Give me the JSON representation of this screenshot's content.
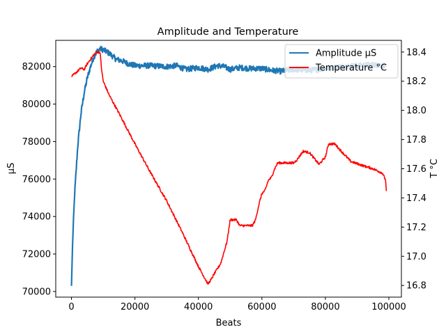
{
  "chart_data": {
    "type": "line",
    "title": "Amplitude and Temperature",
    "xlabel": "Beats",
    "ylabel_left": "µS",
    "ylabel_right": "T °C",
    "xlim": [
      -4950,
      103950
    ],
    "ylim_left": [
      69700,
      83400
    ],
    "ylim_right": [
      16.72,
      18.48
    ],
    "x_ticks": [
      0,
      20000,
      40000,
      60000,
      80000,
      100000
    ],
    "y_ticks_left": [
      70000,
      72000,
      74000,
      76000,
      78000,
      80000,
      82000
    ],
    "y_ticks_right": [
      16.8,
      17.0,
      17.2,
      17.4,
      17.6,
      17.8,
      18.0,
      18.2,
      18.4
    ],
    "grid": false,
    "legend_position": "upper right",
    "series": [
      {
        "name": "Amplitude µS",
        "axis": "left",
        "color": "#1f77b4",
        "noise": 150,
        "points": [
          [
            0,
            70300
          ],
          [
            400,
            72800
          ],
          [
            1000,
            75200
          ],
          [
            2000,
            77800
          ],
          [
            3000,
            79500
          ],
          [
            4000,
            80600
          ],
          [
            5000,
            81400
          ],
          [
            6000,
            82000
          ],
          [
            7000,
            82500
          ],
          [
            8000,
            82800
          ],
          [
            9000,
            82950
          ],
          [
            10000,
            82900
          ],
          [
            12000,
            82700
          ],
          [
            14000,
            82400
          ],
          [
            16000,
            82300
          ],
          [
            18000,
            82150
          ],
          [
            20000,
            82050
          ],
          [
            25000,
            82050
          ],
          [
            30000,
            82000
          ],
          [
            33000,
            82050
          ],
          [
            36000,
            81850
          ],
          [
            40000,
            81950
          ],
          [
            43000,
            81850
          ],
          [
            46000,
            82050
          ],
          [
            48000,
            82000
          ],
          [
            50000,
            81850
          ],
          [
            53000,
            81950
          ],
          [
            56000,
            81900
          ],
          [
            60000,
            81900
          ],
          [
            63000,
            81800
          ],
          [
            66000,
            81750
          ],
          [
            70000,
            81850
          ],
          [
            75000,
            81800
          ],
          [
            80000,
            81900
          ],
          [
            85000,
            82000
          ],
          [
            90000,
            82050
          ],
          [
            95000,
            82100
          ],
          [
            99000,
            82050
          ]
        ]
      },
      {
        "name": "Temperature °C",
        "axis": "right",
        "color": "#ff0000",
        "noise": 0.008,
        "points": [
          [
            0,
            18.23
          ],
          [
            1000,
            18.25
          ],
          [
            2000,
            18.27
          ],
          [
            3000,
            18.29
          ],
          [
            4000,
            18.28
          ],
          [
            5000,
            18.32
          ],
          [
            6000,
            18.35
          ],
          [
            7000,
            18.38
          ],
          [
            8000,
            18.4
          ],
          [
            9000,
            18.4
          ],
          [
            9500,
            18.28
          ],
          [
            10000,
            18.2
          ],
          [
            12000,
            18.1
          ],
          [
            15000,
            17.98
          ],
          [
            20000,
            17.77
          ],
          [
            25000,
            17.57
          ],
          [
            30000,
            17.38
          ],
          [
            35000,
            17.16
          ],
          [
            40000,
            16.93
          ],
          [
            43000,
            16.81
          ],
          [
            44000,
            16.84
          ],
          [
            45000,
            16.88
          ],
          [
            47000,
            16.95
          ],
          [
            49000,
            17.1
          ],
          [
            50000,
            17.25
          ],
          [
            52000,
            17.25
          ],
          [
            53000,
            17.21
          ],
          [
            57000,
            17.21
          ],
          [
            58000,
            17.25
          ],
          [
            59000,
            17.35
          ],
          [
            60000,
            17.43
          ],
          [
            61000,
            17.45
          ],
          [
            62000,
            17.52
          ],
          [
            63000,
            17.54
          ],
          [
            64000,
            17.6
          ],
          [
            65000,
            17.64
          ],
          [
            70000,
            17.64
          ],
          [
            71000,
            17.66
          ],
          [
            73000,
            17.72
          ],
          [
            75000,
            17.71
          ],
          [
            78000,
            17.63
          ],
          [
            80000,
            17.68
          ],
          [
            81000,
            17.77
          ],
          [
            83000,
            17.77
          ],
          [
            85000,
            17.72
          ],
          [
            88000,
            17.65
          ],
          [
            92000,
            17.62
          ],
          [
            95000,
            17.6
          ],
          [
            98000,
            17.57
          ],
          [
            99000,
            17.52
          ],
          [
            99200,
            17.44
          ]
        ]
      }
    ]
  }
}
